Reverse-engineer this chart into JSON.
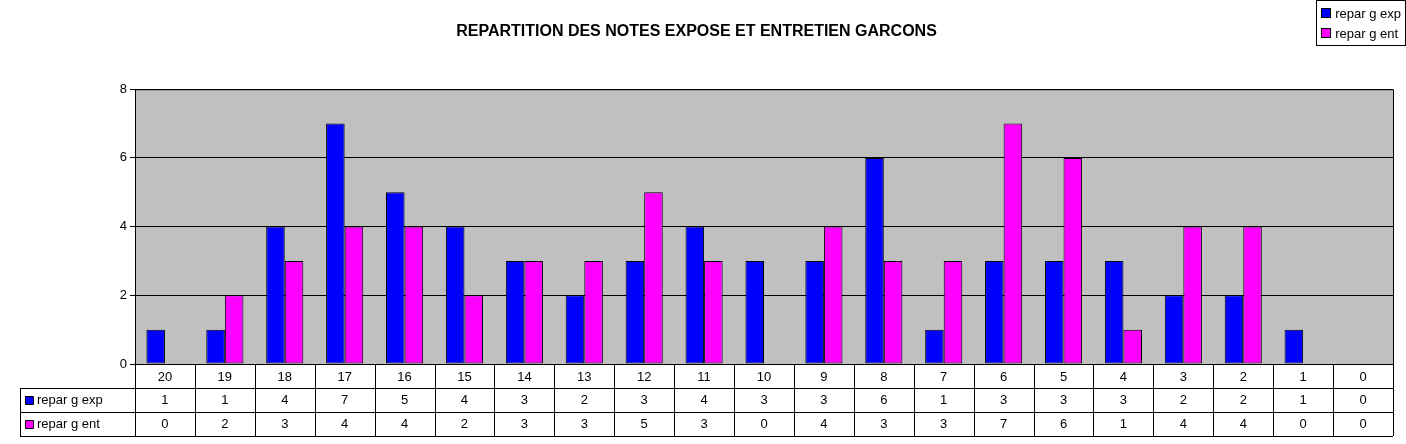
{
  "chart_data": {
    "type": "bar",
    "title": "REPARTITION DES NOTES EXPOSE ET ENTRETIEN GARCONS",
    "categories": [
      "20",
      "19",
      "18",
      "17",
      "16",
      "15",
      "14",
      "13",
      "12",
      "11",
      "10",
      "9",
      "8",
      "7",
      "6",
      "5",
      "4",
      "3",
      "2",
      "1",
      "0"
    ],
    "series": [
      {
        "name": "repar g exp",
        "color": "#0000ff",
        "values": [
          1,
          1,
          4,
          7,
          5,
          4,
          3,
          2,
          3,
          4,
          3,
          3,
          6,
          1,
          3,
          3,
          3,
          2,
          2,
          1,
          0
        ]
      },
      {
        "name": "repar g ent",
        "color": "#ff00ff",
        "values": [
          0,
          2,
          3,
          4,
          4,
          2,
          3,
          3,
          5,
          3,
          0,
          4,
          3,
          3,
          7,
          6,
          1,
          4,
          4,
          0,
          0
        ]
      }
    ],
    "ylim": [
      0,
      8
    ],
    "yticks": [
      0,
      2,
      4,
      6,
      8
    ],
    "grid": "y",
    "legend": "top right",
    "data_labels": true
  }
}
